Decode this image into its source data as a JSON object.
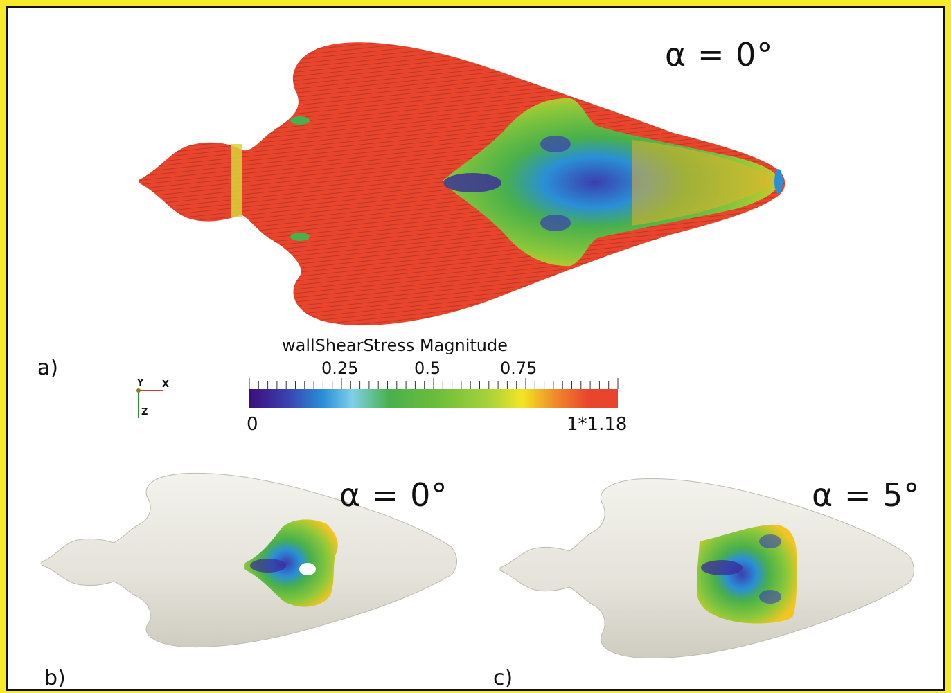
{
  "panels": {
    "a": {
      "label": "a)",
      "alpha_text": "α = 0°"
    },
    "b": {
      "label": "b)",
      "alpha_text": "α = 0°"
    },
    "c": {
      "label": "c)",
      "alpha_text": "α = 5°"
    }
  },
  "colorbar": {
    "title": "wallShearStress Magnitude",
    "ticks": [
      "0.25",
      "0.5",
      "0.75"
    ],
    "min_label": "0",
    "max_label": "1*1.18",
    "colormap": [
      "#3b0f7a",
      "#3a3fb0",
      "#2a8fd6",
      "#7fd0e8",
      "#49b04b",
      "#6fbf3a",
      "#a8d23a",
      "#f2e622",
      "#f08a2a",
      "#e8452c",
      "#e8452c"
    ]
  },
  "axes_triad": {
    "y": "Y",
    "x": "X",
    "z": "Z"
  },
  "colors": {
    "background_border": "#f7ea2a",
    "high_stress": "#e8452c",
    "model_surface": "#e9e7df"
  }
}
